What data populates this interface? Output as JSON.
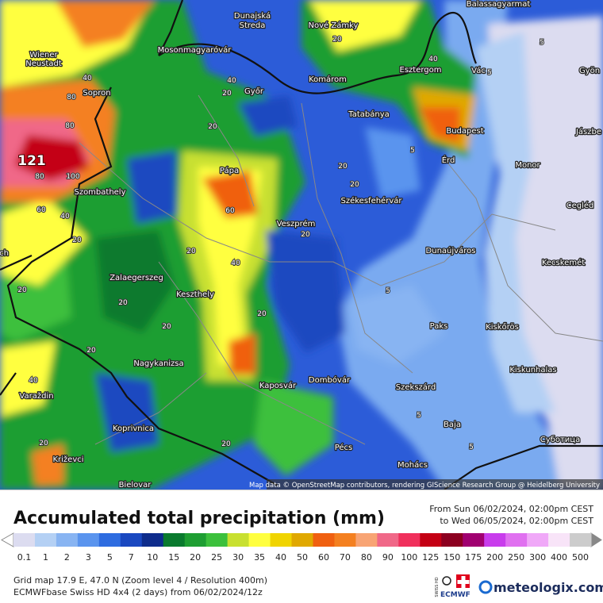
{
  "map": {
    "cities": [
      "Dunajská",
      "Streda",
      "Nové Zámky",
      "Balassagyarmat",
      "Wiener",
      "Neustadt",
      "Mosonmagyaróvár",
      "Esztergom",
      "Vác",
      "Gyön",
      "Sopron",
      "Győr",
      "Komárom",
      "Tatabánya",
      "Budapest",
      "Jászbe",
      "Érd",
      "Monor",
      "Szombathely",
      "Pápa",
      "Székesfehérvár",
      "Cegléd",
      "Veszprém",
      "Dunaújváros",
      "Kecskemét",
      "Zalaegerszeg",
      "Keszthely",
      "Paks",
      "Kiskőrös",
      "Nagykanizsa",
      "Kiskunhalas",
      "Kaposvár",
      "Dombóvár",
      "Szekszárd",
      "Varaždin",
      "Baja",
      "Koprivnica",
      "Суботица",
      "Pécs",
      "Križevci",
      "Mohács",
      "Bielovar",
      "ch"
    ],
    "peak_label": 121,
    "contour_labels": [
      80,
      80,
      80,
      60,
      40,
      20,
      20,
      40,
      40,
      20,
      20,
      60,
      40,
      20,
      20,
      20,
      20,
      20,
      40,
      20,
      20,
      40,
      5,
      5,
      5,
      20,
      20,
      5,
      5,
      5,
      20,
      20,
      100
    ],
    "attribution": "Map data © OpenStreetMap contributors, rendering GIScience Research Group @ Heidelberg University"
  },
  "legend": {
    "title": "Accumulated total precipitation (mm)",
    "period_from": "From Sun 06/02/2024, 02:00pm CEST",
    "period_to": "to Wed 06/05/2024, 02:00pm CEST",
    "values": [
      0.1,
      1,
      2,
      3,
      5,
      7,
      10,
      15,
      20,
      25,
      30,
      35,
      40,
      50,
      60,
      70,
      80,
      90,
      100,
      125,
      150,
      175,
      200,
      250,
      300,
      400,
      500
    ],
    "colors": [
      "#dcdcf0",
      "#b4d0f4",
      "#88b4f2",
      "#5a94ee",
      "#2e6ce0",
      "#1a48c0",
      "#0e2c8c",
      "#0a7a2e",
      "#1e9e32",
      "#3cc03c",
      "#c8e030",
      "#ffff40",
      "#f0d400",
      "#e0a800",
      "#f06010",
      "#f48020",
      "#f8a474",
      "#f06888",
      "#f0305c",
      "#c40014",
      "#8c0020",
      "#a00070",
      "#c83cec",
      "#e070f0",
      "#f0a8f8",
      "#f8e4f8",
      "#cccccc"
    ]
  },
  "footer": {
    "grid_info": "Grid map 17.9 E, 47.0 N (Zoom level 4 / Resolution 400m)",
    "model_info": "ECMWFbase Swiss HD 4x4 (2 days) from 06/02/2024/12z",
    "badge_top": "SWISS HD",
    "badge_bottom": "ECMWF",
    "brand": "meteologix.com"
  }
}
